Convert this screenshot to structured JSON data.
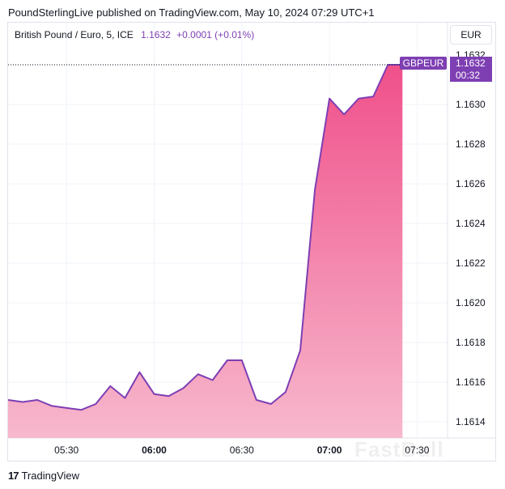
{
  "header": {
    "published": "PoundSterlingLive published on TradingView.com, May 10, 2024 07:29 UTC+1"
  },
  "legend": {
    "symbol": "British Pound / Euro, 5, ICE",
    "price": "1.1632",
    "change": "+0.0001 (+0.01%)"
  },
  "currency": "EUR",
  "price_tag": {
    "symbol": "GBPEUR",
    "price": "1.1632",
    "countdown": "00:32"
  },
  "footer": {
    "brand": "TradingView"
  },
  "watermark": "FastBull",
  "colors": {
    "line": "#7e3fb3",
    "fill_top": "#f0508a",
    "fill_bottom": "#f7b8cd",
    "tag_bg": "#7e3fb3"
  },
  "chart_data": {
    "type": "area",
    "title": "British Pound / Euro, 5, ICE",
    "xlabel": "",
    "ylabel": "",
    "x_ticks": [
      {
        "label": "05:30",
        "time": "05:30",
        "bold": false
      },
      {
        "label": "06:00",
        "time": "06:00",
        "bold": true
      },
      {
        "label": "06:30",
        "time": "06:30",
        "bold": false
      },
      {
        "label": "07:00",
        "time": "07:00",
        "bold": true
      },
      {
        "label": "07:30",
        "time": "07:30",
        "bold": false
      }
    ],
    "y_ticks": [
      "1.1632",
      "1.1630",
      "1.1628",
      "1.1626",
      "1.1624",
      "1.1622",
      "1.1620",
      "1.1618",
      "1.1616",
      "1.1614"
    ],
    "ylim": [
      1.16131,
      1.16327
    ],
    "x": [
      "05:10",
      "05:15",
      "05:20",
      "05:25",
      "05:30",
      "05:35",
      "05:40",
      "05:45",
      "05:50",
      "05:55",
      "06:00",
      "06:05",
      "06:10",
      "06:15",
      "06:20",
      "06:25",
      "06:30",
      "06:35",
      "06:40",
      "06:45",
      "06:50",
      "06:55",
      "07:00",
      "07:05",
      "07:10",
      "07:15",
      "07:20",
      "07:25"
    ],
    "values": [
      1.16151,
      1.1615,
      1.16151,
      1.16148,
      1.16147,
      1.16146,
      1.16149,
      1.16158,
      1.16152,
      1.16165,
      1.16154,
      1.16153,
      1.16157,
      1.16164,
      1.16161,
      1.16171,
      1.16171,
      1.16151,
      1.16149,
      1.16155,
      1.16176,
      1.16257,
      1.16303,
      1.16295,
      1.16303,
      1.16304,
      1.1632,
      1.1632
    ],
    "grid": true,
    "legend": "top-left"
  }
}
